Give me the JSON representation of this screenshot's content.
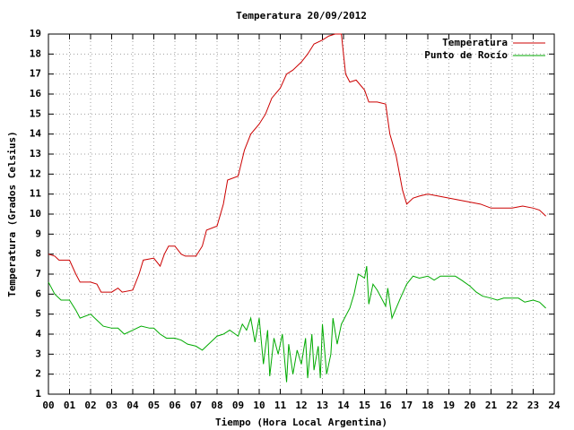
{
  "chart_data": {
    "type": "line",
    "title": "Temperatura 20/09/2012",
    "xlabel": "Tiempo (Hora Local Argentina)",
    "ylabel": "Temperatura (Grados Celsius)",
    "xlim": [
      0,
      24
    ],
    "xticks": [
      {
        "value": 0,
        "label": "00"
      },
      {
        "value": 1,
        "label": "01"
      },
      {
        "value": 2,
        "label": "02"
      },
      {
        "value": 3,
        "label": "03"
      },
      {
        "value": 4,
        "label": "04"
      },
      {
        "value": 5,
        "label": "05"
      },
      {
        "value": 6,
        "label": "06"
      },
      {
        "value": 7,
        "label": "07"
      },
      {
        "value": 8,
        "label": "08"
      },
      {
        "value": 9,
        "label": "09"
      },
      10,
      11,
      12,
      13,
      14,
      15,
      16,
      17,
      18,
      19,
      20,
      21,
      22,
      23,
      24
    ],
    "ylim": [
      1,
      19
    ],
    "yticks": [
      1,
      2,
      3,
      4,
      5,
      6,
      7,
      8,
      9,
      10,
      11,
      12,
      13,
      14,
      15,
      16,
      17,
      18,
      19
    ],
    "grid": true,
    "legend": "top-right",
    "series": [
      {
        "name": "Temperatura",
        "color": "#cc0000",
        "x": [
          0,
          0.3,
          0.5,
          1.0,
          1.3,
          1.5,
          2.0,
          2.3,
          2.5,
          3.0,
          3.3,
          3.5,
          4.0,
          4.3,
          4.5,
          5.0,
          5.3,
          5.5,
          5.7,
          6.0,
          6.3,
          6.5,
          7.0,
          7.3,
          7.5,
          8.0,
          8.3,
          8.5,
          9.0,
          9.3,
          9.6,
          10.0,
          10.3,
          10.6,
          11.0,
          11.3,
          11.6,
          12.0,
          12.3,
          12.6,
          13.0,
          13.3,
          13.6,
          13.9,
          14.1,
          14.3,
          14.6,
          15.0,
          15.2,
          15.6,
          16.0,
          16.2,
          16.5,
          16.8,
          17.0,
          17.3,
          17.6,
          18.0,
          18.5,
          19.0,
          19.5,
          20.0,
          20.5,
          21.0,
          21.5,
          22.0,
          22.5,
          23.0,
          23.3,
          23.5,
          23.6
        ],
        "values": [
          8.0,
          7.9,
          7.7,
          7.7,
          7.0,
          6.6,
          6.6,
          6.5,
          6.1,
          6.1,
          6.3,
          6.1,
          6.2,
          7.0,
          7.7,
          7.8,
          7.4,
          8.0,
          8.4,
          8.4,
          8.0,
          7.9,
          7.9,
          8.4,
          9.2,
          9.4,
          10.5,
          11.7,
          11.9,
          13.2,
          14.0,
          14.5,
          15.0,
          15.8,
          16.3,
          17.0,
          17.2,
          17.6,
          18.0,
          18.5,
          18.7,
          18.9,
          19.0,
          19.0,
          17.0,
          16.6,
          16.7,
          16.2,
          15.6,
          15.6,
          15.5,
          14.0,
          12.9,
          11.2,
          10.5,
          10.8,
          10.9,
          11.0,
          10.9,
          10.8,
          10.7,
          10.6,
          10.5,
          10.3,
          10.3,
          10.3,
          10.4,
          10.3,
          10.2,
          10.0,
          9.9
        ]
      },
      {
        "name": "Punto de Rocío",
        "color": "#00aa00",
        "x": [
          0,
          0.3,
          0.6,
          1.0,
          1.3,
          1.5,
          2.0,
          2.3,
          2.6,
          3.0,
          3.3,
          3.6,
          4.0,
          4.4,
          4.8,
          5.0,
          5.3,
          5.6,
          6.0,
          6.3,
          6.6,
          7.0,
          7.3,
          7.6,
          8.0,
          8.3,
          8.6,
          9.0,
          9.2,
          9.4,
          9.6,
          9.8,
          10.0,
          10.2,
          10.4,
          10.5,
          10.7,
          10.9,
          11.1,
          11.3,
          11.4,
          11.6,
          11.8,
          12.0,
          12.2,
          12.3,
          12.5,
          12.6,
          12.8,
          12.9,
          13.0,
          13.2,
          13.4,
          13.5,
          13.7,
          13.9,
          14.1,
          14.3,
          14.5,
          14.7,
          15.0,
          15.1,
          15.2,
          15.4,
          15.6,
          15.8,
          16.0,
          16.1,
          16.3,
          16.5,
          16.7,
          17.0,
          17.3,
          17.6,
          18.0,
          18.3,
          18.6,
          19.0,
          19.3,
          19.6,
          20.0,
          20.3,
          20.6,
          21.0,
          21.3,
          21.6,
          22.0,
          22.3,
          22.6,
          23.0,
          23.3,
          23.5,
          23.6
        ],
        "values": [
          6.6,
          6.0,
          5.7,
          5.7,
          5.2,
          4.8,
          5.0,
          4.7,
          4.4,
          4.3,
          4.3,
          4.0,
          4.2,
          4.4,
          4.3,
          4.3,
          4.0,
          3.8,
          3.8,
          3.7,
          3.5,
          3.4,
          3.2,
          3.5,
          3.9,
          4.0,
          4.2,
          3.9,
          4.5,
          4.2,
          4.8,
          3.6,
          4.8,
          2.5,
          4.2,
          1.9,
          3.8,
          3.0,
          4.0,
          1.6,
          3.5,
          2.0,
          3.2,
          2.5,
          3.8,
          1.8,
          4.0,
          2.2,
          3.4,
          1.8,
          4.5,
          2.0,
          3.0,
          4.8,
          3.5,
          4.5,
          4.9,
          5.3,
          6.0,
          7.0,
          6.8,
          7.4,
          5.5,
          6.5,
          6.2,
          5.8,
          5.4,
          6.3,
          4.8,
          5.3,
          5.8,
          6.5,
          6.9,
          6.8,
          6.9,
          6.7,
          6.9,
          6.9,
          6.9,
          6.7,
          6.4,
          6.1,
          5.9,
          5.8,
          5.7,
          5.8,
          5.8,
          5.8,
          5.6,
          5.7,
          5.6,
          5.4,
          5.3
        ]
      }
    ]
  }
}
